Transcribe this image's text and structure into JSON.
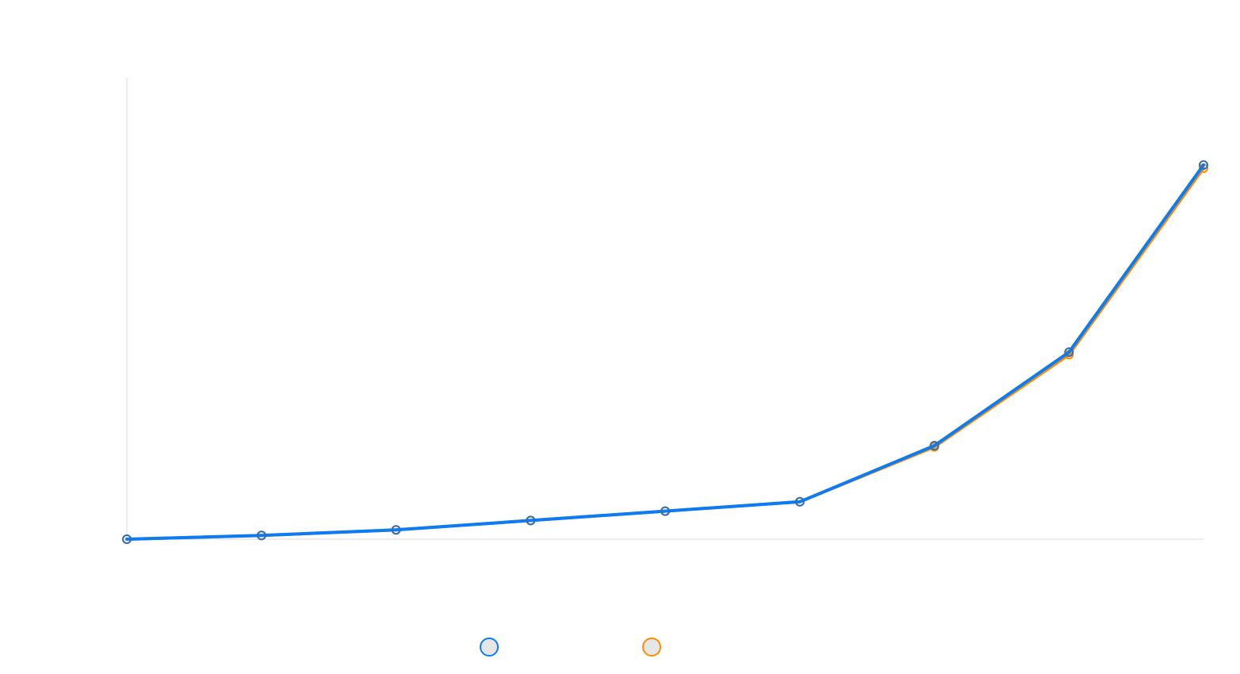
{
  "chart_data": {
    "type": "line",
    "title": "",
    "xlabel": "",
    "ylabel": "",
    "categories": [
      "",
      "",
      "",
      "",
      "",
      "",
      "",
      "",
      ""
    ],
    "ylim": [
      0,
      600
    ],
    "grid": false,
    "legend": "bottom",
    "series": [
      {
        "name": "",
        "color": "#0a7cf5",
        "values": [
          0,
          6,
          15,
          30,
          45,
          60,
          150,
          300,
          600
        ]
      },
      {
        "name": "",
        "color": "#ff8c00",
        "values": [
          0,
          6,
          15,
          30,
          45,
          60,
          148,
          296,
          595
        ]
      }
    ]
  }
}
